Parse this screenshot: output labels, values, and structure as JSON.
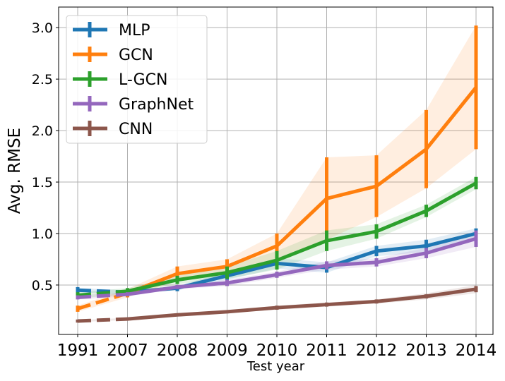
{
  "chart_data": {
    "type": "line",
    "title": "",
    "xlabel": "Test year",
    "ylabel": "Avg. RMSE",
    "categories": [
      "1991",
      "2007",
      "2008",
      "2009",
      "2010",
      "2011",
      "2012",
      "2013",
      "2014"
    ],
    "ylim": [
      0.02,
      3.2
    ],
    "yticks": [
      0.5,
      1.0,
      1.5,
      2.0,
      2.5,
      3.0
    ],
    "ytick_labels": [
      "0.5",
      "1.0",
      "1.5",
      "2.0",
      "2.5",
      "3.0"
    ],
    "grid": true,
    "legend_position": "top-left",
    "note": "First segment (1991 to 2007) drawn dashed",
    "series": [
      {
        "name": "MLP",
        "color": "#1f77b4",
        "values": [
          0.45,
          0.43,
          0.47,
          0.59,
          0.71,
          0.67,
          0.83,
          0.88,
          1.0
        ],
        "err": [
          0.03,
          0.03,
          0.03,
          0.04,
          0.05,
          0.05,
          0.05,
          0.06,
          0.05
        ],
        "band_err": [
          0.02,
          0.02,
          0.02,
          0.04,
          0.05,
          0.05,
          0.05,
          0.06,
          0.05
        ]
      },
      {
        "name": "GCN",
        "color": "#ff7f0e",
        "values": [
          0.27,
          0.42,
          0.61,
          0.68,
          0.88,
          1.34,
          1.46,
          1.82,
          2.42
        ],
        "err": [
          0.03,
          0.04,
          0.07,
          0.07,
          0.12,
          0.4,
          0.3,
          0.38,
          0.6
        ],
        "band_err": [
          0.03,
          0.04,
          0.07,
          0.07,
          0.12,
          0.4,
          0.3,
          0.38,
          0.6
        ]
      },
      {
        "name": "L-GCN",
        "color": "#2ca02c",
        "values": [
          0.4,
          0.44,
          0.55,
          0.62,
          0.74,
          0.93,
          1.02,
          1.22,
          1.49
        ],
        "err": [
          0.03,
          0.03,
          0.04,
          0.06,
          0.09,
          0.1,
          0.07,
          0.06,
          0.06
        ],
        "band_err": [
          0.03,
          0.03,
          0.04,
          0.06,
          0.09,
          0.1,
          0.07,
          0.06,
          0.06
        ]
      },
      {
        "name": "GraphNet",
        "color": "#9467bd",
        "values": [
          0.38,
          0.41,
          0.48,
          0.52,
          0.6,
          0.69,
          0.72,
          0.81,
          0.95
        ],
        "err": [
          0.02,
          0.02,
          0.02,
          0.03,
          0.03,
          0.04,
          0.04,
          0.05,
          0.08
        ],
        "band_err": [
          0.02,
          0.02,
          0.02,
          0.03,
          0.03,
          0.04,
          0.04,
          0.05,
          0.08
        ]
      },
      {
        "name": "CNN",
        "color": "#8c564b",
        "values": [
          0.15,
          0.17,
          0.21,
          0.24,
          0.28,
          0.31,
          0.34,
          0.39,
          0.46
        ],
        "err": [
          0.01,
          0.01,
          0.01,
          0.01,
          0.02,
          0.02,
          0.02,
          0.02,
          0.03
        ],
        "band_err": [
          0.01,
          0.01,
          0.01,
          0.01,
          0.02,
          0.02,
          0.02,
          0.03,
          0.04
        ]
      }
    ]
  }
}
